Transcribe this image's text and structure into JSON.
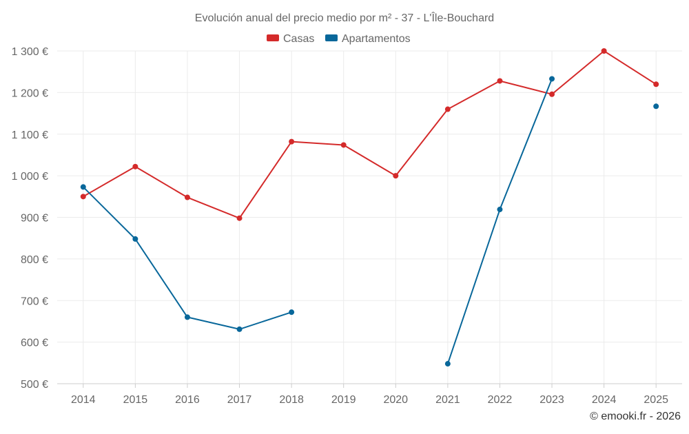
{
  "chart_data": {
    "type": "line",
    "title": "Evolución anual del precio medio por m² - 37 - L'Île-Bouchard",
    "xlabel": "",
    "ylabel": "",
    "categories": [
      "2014",
      "2015",
      "2016",
      "2017",
      "2018",
      "2019",
      "2020",
      "2021",
      "2022",
      "2023",
      "2024",
      "2025"
    ],
    "ylim": [
      500,
      1300
    ],
    "yticks": [
      500,
      600,
      700,
      800,
      900,
      1000,
      1100,
      1200,
      1300
    ],
    "ytick_labels": [
      "500 €",
      "600 €",
      "700 €",
      "800 €",
      "900 €",
      "1 000 €",
      "1 100 €",
      "1 200 €",
      "1 300 €"
    ],
    "grid": true,
    "legend_position": "top-center",
    "series": [
      {
        "name": "Casas",
        "color": "#d42a2a",
        "values": [
          950,
          1022,
          948,
          898,
          1082,
          1074,
          1000,
          1160,
          1228,
          1196,
          1300,
          1220
        ]
      },
      {
        "name": "Apartamentos",
        "color": "#08679a",
        "values": [
          973,
          848,
          660,
          631,
          672,
          null,
          null,
          548,
          919,
          1233,
          null,
          1167
        ]
      }
    ]
  },
  "footer": {
    "credit": "© emooki.fr - 2026"
  }
}
